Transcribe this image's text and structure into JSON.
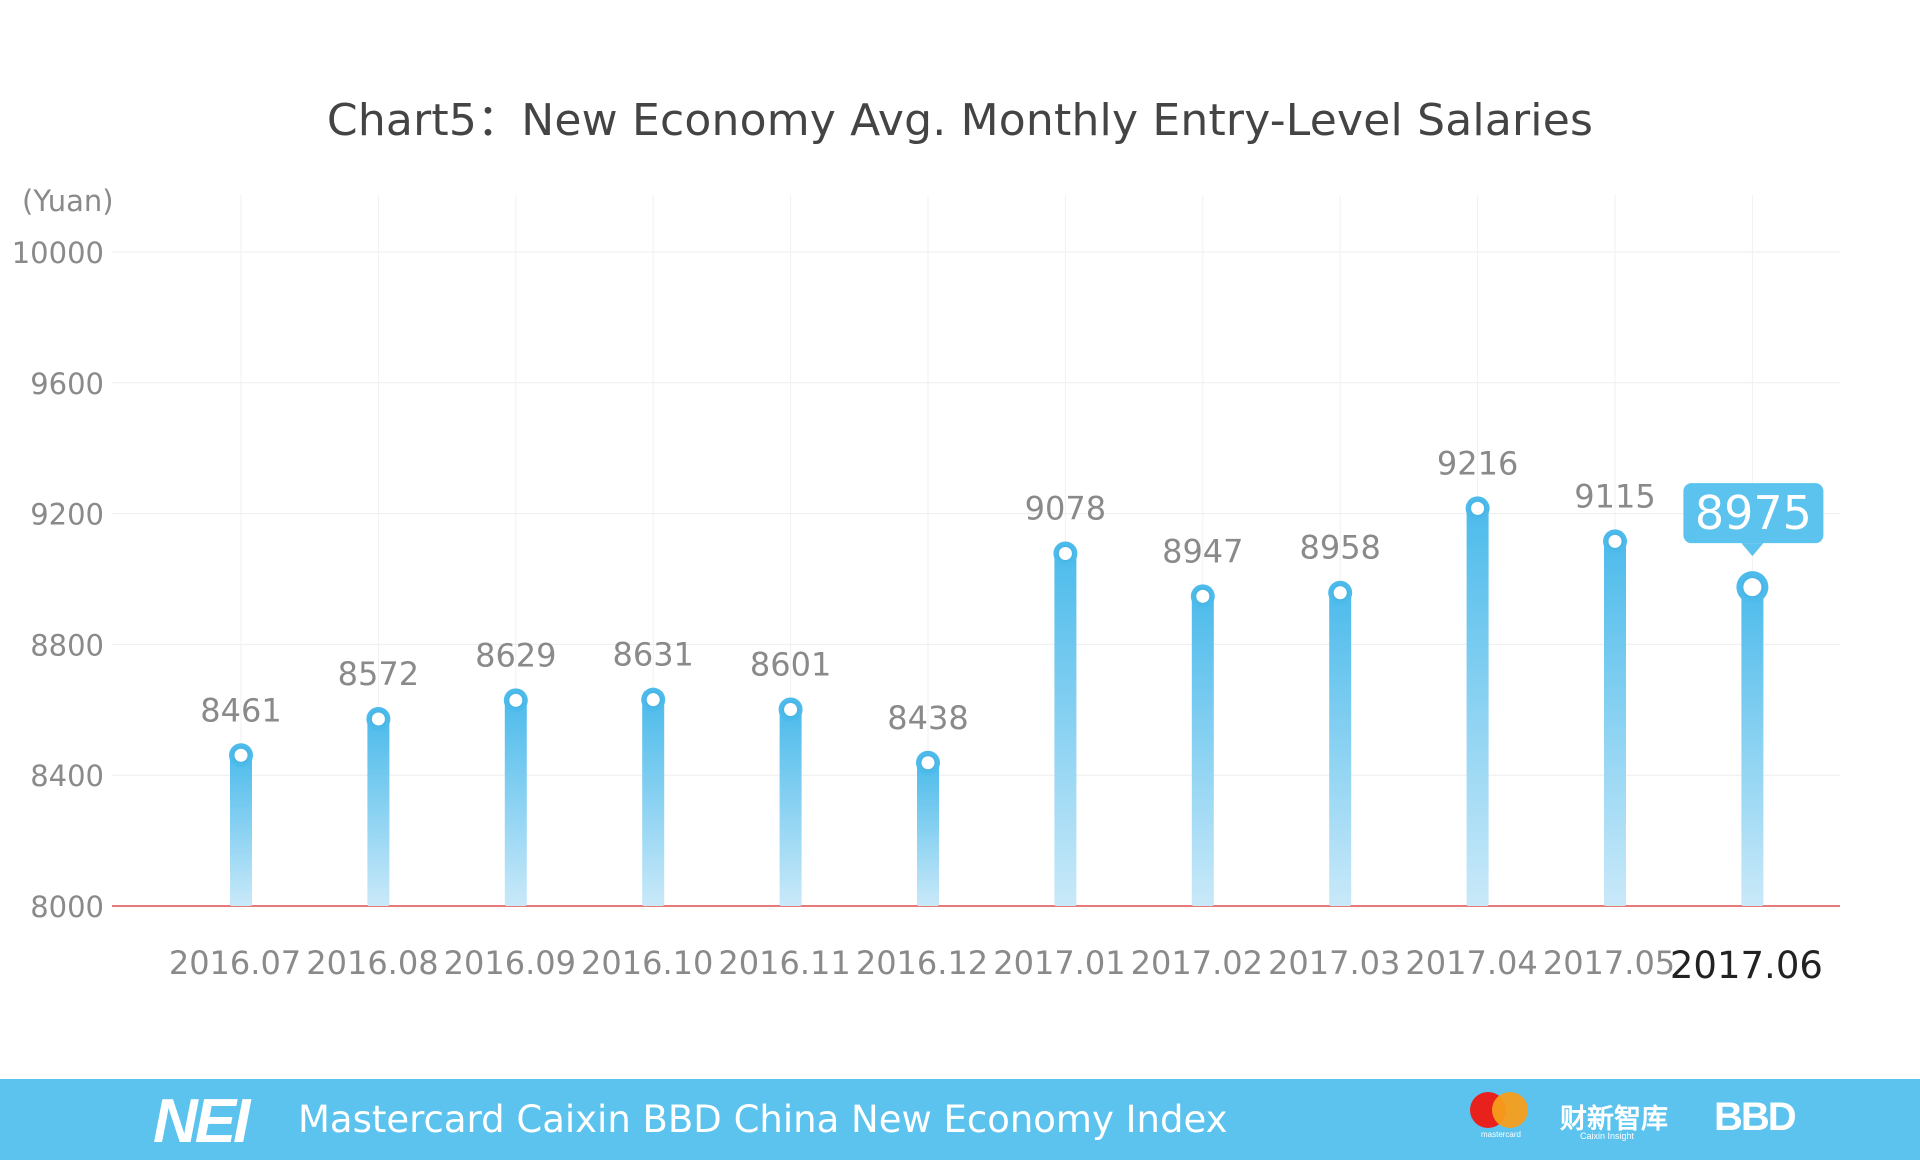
{
  "chart_data": {
    "type": "bar",
    "title": "Chart5：New Economy Avg. Monthly Entry-Level Salaries",
    "ylabel": "(Yuan)",
    "ylim": [
      8000,
      10000
    ],
    "yticks": [
      "8000",
      "8400",
      "8800",
      "9200",
      "9600",
      "10000"
    ],
    "categories": [
      "2016.07",
      "2016.08",
      "2016.09",
      "2016.10",
      "2016.11",
      "2016.12",
      "2017.01",
      "2017.02",
      "2017.03",
      "2017.04",
      "2017.05",
      "2017.06"
    ],
    "values": [
      8461,
      8572,
      8629,
      8631,
      8601,
      8438,
      9078,
      8947,
      8958,
      9216,
      9115,
      8975
    ],
    "highlight_index": 11,
    "grid": true,
    "bar_color": "#5bc3ee",
    "baseline_color": "#e8797a"
  },
  "footer": {
    "logo": "NEI",
    "text": "Mastercard Caixin BBD China New Economy Index",
    "mastercard_word": "mastercard",
    "caixin_logo": "财新智库",
    "caixin_sub": "Caixin Insight",
    "bbd_logo": "BBD",
    "background": "#5bc3ee"
  }
}
